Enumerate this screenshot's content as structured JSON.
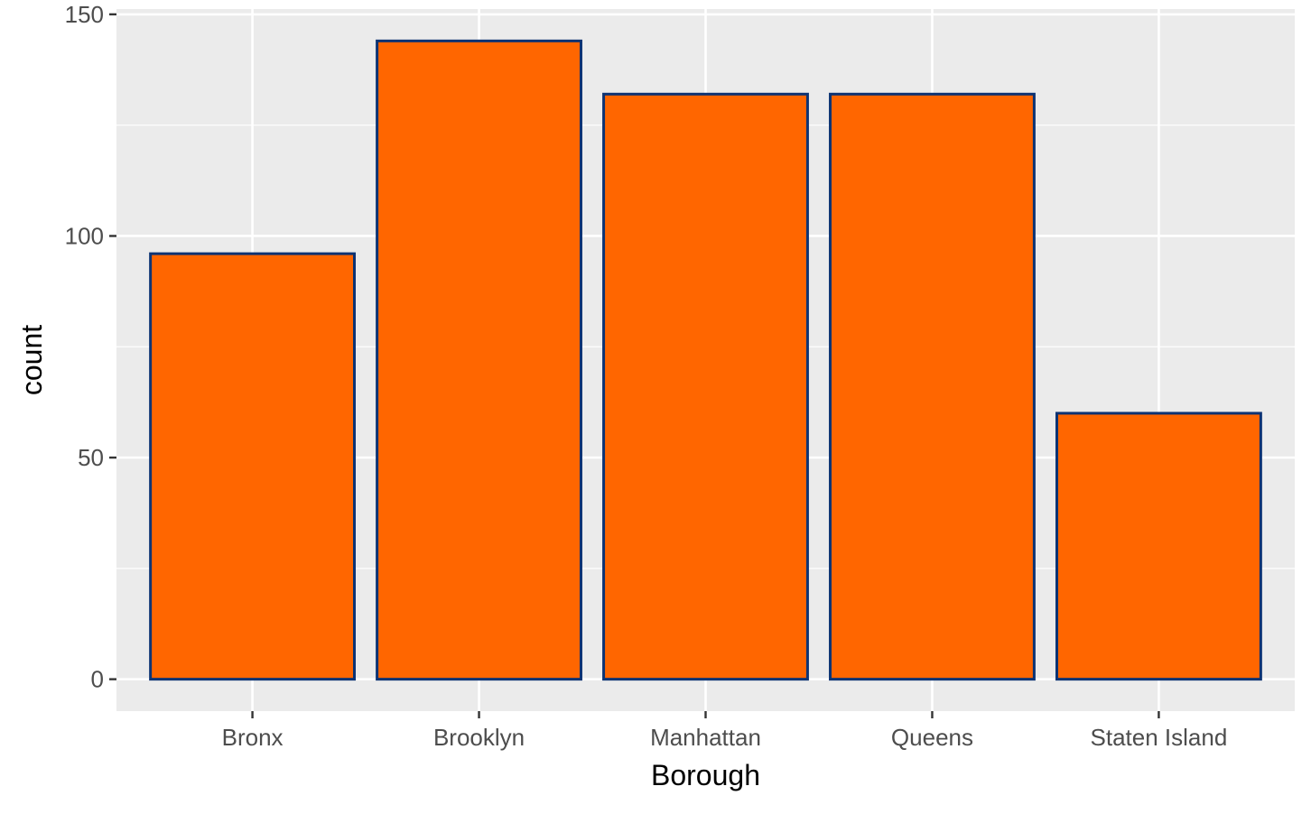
{
  "chart_data": {
    "type": "bar",
    "title": "",
    "xlabel": "Borough",
    "ylabel": "count",
    "categories": [
      "Bronx",
      "Brooklyn",
      "Manhattan",
      "Queens",
      "Staten Island"
    ],
    "values": [
      96,
      144,
      132,
      132,
      60
    ],
    "ylim": [
      -7.2,
      151.2
    ],
    "yticks": [
      0,
      50,
      100,
      150
    ],
    "grid": true,
    "legend": "none",
    "colors": {
      "bar_fill": "#FF6600",
      "bar_outline": "#0D3373",
      "panel_background": "#EBEBEB",
      "grid": "#FFFFFF",
      "tick_text": "#4D4D4D",
      "tick_mark": "#333333"
    }
  }
}
